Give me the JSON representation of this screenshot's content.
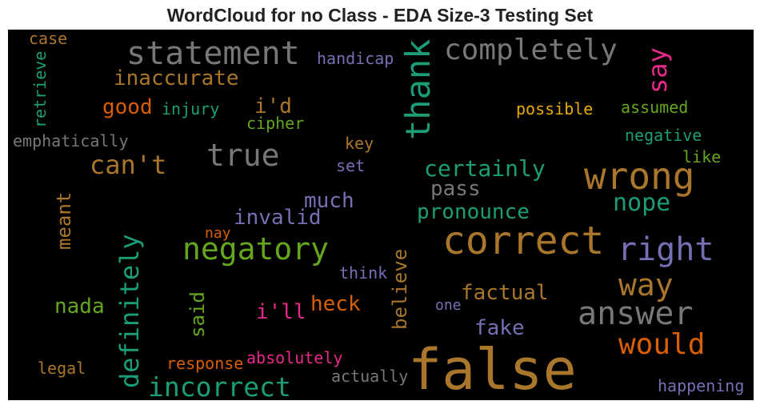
{
  "title": "WordCloud for no Class - EDA Size-3 Testing Set",
  "colors": {
    "gray": "#777777",
    "brown": "#a9762c",
    "green": "#1b9e77",
    "olive": "#66a61e",
    "purple": "#7570b3",
    "orange": "#d95f02",
    "pink": "#e7298a",
    "gold": "#e6ab02"
  },
  "words": [
    {
      "id": "false",
      "text": "false",
      "color": "#a9762c"
    },
    {
      "id": "correct",
      "text": "correct",
      "color": "#a9762c"
    },
    {
      "id": "wrong",
      "text": "wrong",
      "color": "#a9762c"
    },
    {
      "id": "right",
      "text": "right",
      "color": "#7570b3"
    },
    {
      "id": "answer",
      "text": "answer",
      "color": "#777777"
    },
    {
      "id": "statement",
      "text": "statement",
      "color": "#777777"
    },
    {
      "id": "completely",
      "text": "completely",
      "color": "#777777"
    },
    {
      "id": "thank",
      "text": "thank",
      "color": "#1b9e77"
    },
    {
      "id": "negatory",
      "text": "negatory",
      "color": "#66a61e"
    },
    {
      "id": "true",
      "text": "true",
      "color": "#777777"
    },
    {
      "id": "way",
      "text": "way",
      "color": "#a9762c"
    },
    {
      "id": "would",
      "text": "would",
      "color": "#d95f02"
    },
    {
      "id": "incorrect",
      "text": "incorrect",
      "color": "#1b9e77"
    },
    {
      "id": "definitely",
      "text": "definitely",
      "color": "#1b9e77"
    },
    {
      "id": "cant",
      "text": "can't",
      "color": "#a9762c"
    },
    {
      "id": "say",
      "text": "say",
      "color": "#e7298a"
    },
    {
      "id": "certainly",
      "text": "certainly",
      "color": "#1b9e77"
    },
    {
      "id": "inaccurate",
      "text": "inaccurate",
      "color": "#a9762c"
    },
    {
      "id": "invalid",
      "text": "invalid",
      "color": "#7570b3"
    },
    {
      "id": "much",
      "text": "much",
      "color": "#7570b3"
    },
    {
      "id": "nope",
      "text": "nope",
      "color": "#1b9e77"
    },
    {
      "id": "pronounce",
      "text": "pronounce",
      "color": "#1b9e77"
    },
    {
      "id": "good",
      "text": "good",
      "color": "#d95f02"
    },
    {
      "id": "id",
      "text": "i'd",
      "color": "#a9762c"
    },
    {
      "id": "pass",
      "text": "pass",
      "color": "#777777"
    },
    {
      "id": "factual",
      "text": "factual",
      "color": "#a9762c"
    },
    {
      "id": "ill",
      "text": "i'll",
      "color": "#e7298a"
    },
    {
      "id": "heck",
      "text": "heck",
      "color": "#d95f02"
    },
    {
      "id": "nada",
      "text": "nada",
      "color": "#66a61e"
    },
    {
      "id": "fake",
      "text": "fake",
      "color": "#7570b3"
    },
    {
      "id": "meant",
      "text": "meant",
      "color": "#a9762c"
    },
    {
      "id": "believe",
      "text": "believe",
      "color": "#a9762c"
    },
    {
      "id": "said",
      "text": "said",
      "color": "#66a61e"
    },
    {
      "id": "absolutely",
      "text": "absolutely",
      "color": "#e7298a"
    },
    {
      "id": "response",
      "text": "response",
      "color": "#d95f02"
    },
    {
      "id": "actually",
      "text": "actually",
      "color": "#777777"
    },
    {
      "id": "happening",
      "text": "happening",
      "color": "#7570b3"
    },
    {
      "id": "legal",
      "text": "legal",
      "color": "#a9762c"
    },
    {
      "id": "handicap",
      "text": "handicap",
      "color": "#7570b3"
    },
    {
      "id": "possible",
      "text": "possible",
      "color": "#e6ab02"
    },
    {
      "id": "assumed",
      "text": "assumed",
      "color": "#66a61e"
    },
    {
      "id": "negative",
      "text": "negative",
      "color": "#1b9e77"
    },
    {
      "id": "like",
      "text": "like",
      "color": "#66a61e"
    },
    {
      "id": "injury",
      "text": "injury",
      "color": "#1b9e77"
    },
    {
      "id": "cipher",
      "text": "cipher",
      "color": "#66a61e"
    },
    {
      "id": "emphatically",
      "text": "emphatically",
      "color": "#777777"
    },
    {
      "id": "key",
      "text": "key",
      "color": "#a9762c"
    },
    {
      "id": "set",
      "text": "set",
      "color": "#7570b3"
    },
    {
      "id": "case",
      "text": "case",
      "color": "#a9762c"
    },
    {
      "id": "retrieve",
      "text": "retrieve",
      "color": "#1b9e77"
    },
    {
      "id": "nay",
      "text": "nay",
      "color": "#d95f02"
    },
    {
      "id": "think",
      "text": "think",
      "color": "#7570b3"
    },
    {
      "id": "one",
      "text": "one",
      "color": "#7570b3"
    }
  ]
}
